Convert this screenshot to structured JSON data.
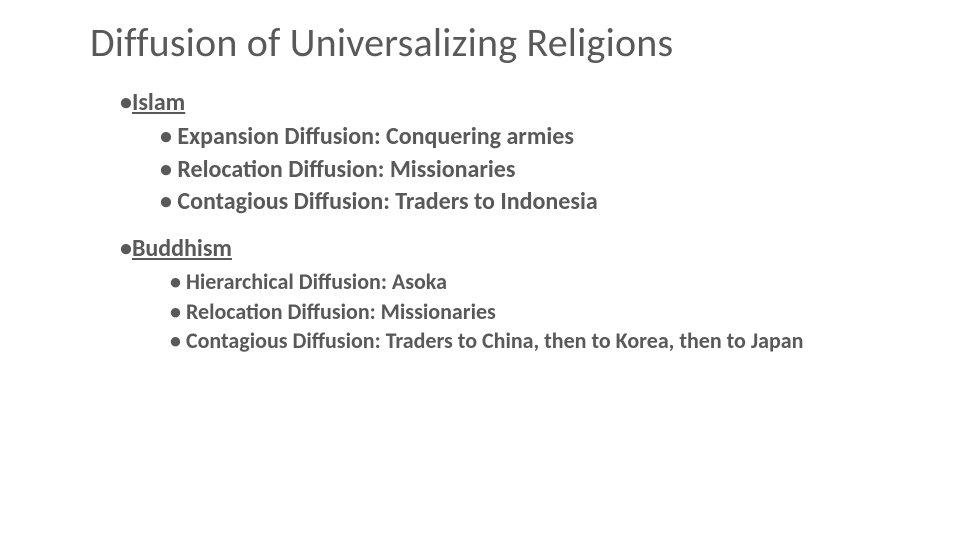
{
  "title": "Diffusion of Universalizing Religions",
  "text_color": "#595959",
  "background_color": "#ffffff",
  "title_fontsize": 40,
  "body_fontsize": 24,
  "deep_fontsize": 22,
  "sections": [
    {
      "header": "Islam",
      "depth": 1,
      "items": [
        "Expansion Diffusion: Conquering armies",
        "Relocation Diffusion: Missionaries",
        "Contagious Diffusion: Traders to Indonesia"
      ]
    },
    {
      "header": "Buddhism",
      "depth": 2,
      "items": [
        "Hierarchical Diffusion:  Asoka",
        "Relocation Diffusion: Missionaries",
        "Contagious Diffusion: Traders to China, then to Korea, then to Japan"
      ]
    }
  ]
}
